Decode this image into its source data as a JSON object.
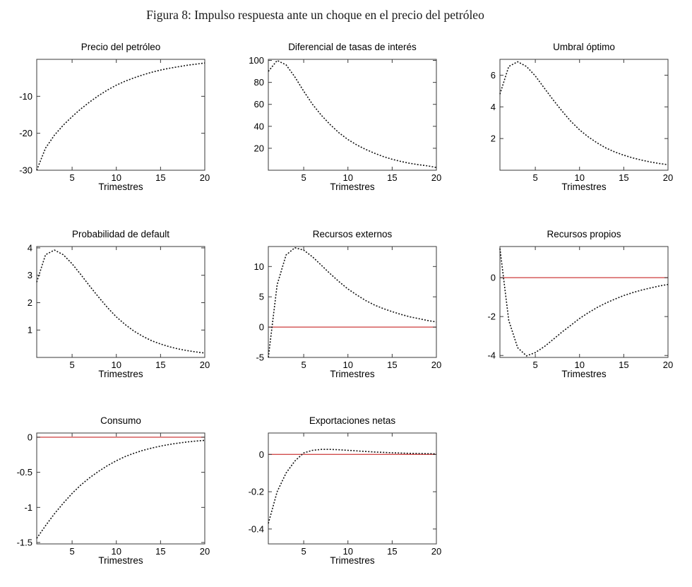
{
  "figure_title": "Figura 8: Impulso respuesta ante un choque en el precio del petróleo",
  "colors": {
    "curve": "#111111",
    "zero_line": "#d24d4d",
    "axes": "#3a3a3a"
  },
  "chart_data": [
    {
      "type": "line",
      "title": "Precio del petróleo",
      "xlabel": "Trimestres",
      "x": [
        1,
        2,
        3,
        4,
        5,
        6,
        7,
        8,
        9,
        10,
        11,
        12,
        13,
        14,
        15,
        16,
        17,
        18,
        19,
        20
      ],
      "values": [
        -30,
        -24,
        -20.5,
        -17.8,
        -15.5,
        -13.4,
        -11.5,
        -9.8,
        -8.3,
        -7.0,
        -5.9,
        -5.0,
        -4.2,
        -3.5,
        -2.9,
        -2.4,
        -2.0,
        -1.6,
        -1.3,
        -1.0
      ],
      "ylim": [
        -30,
        0
      ],
      "yticks": [
        -30,
        -20,
        -10
      ],
      "xticks": [
        5,
        10,
        15,
        20
      ],
      "zero_line": false,
      "line_style": "dotted"
    },
    {
      "type": "line",
      "title": "Diferencial de tasas de interés",
      "xlabel": "Trimestres",
      "x": [
        1,
        2,
        3,
        4,
        5,
        6,
        7,
        8,
        9,
        10,
        11,
        12,
        13,
        14,
        15,
        16,
        17,
        18,
        19,
        20
      ],
      "values": [
        90,
        100,
        96,
        85,
        72,
        60,
        50,
        41.5,
        34,
        28,
        23,
        19,
        15.5,
        12.5,
        10,
        8,
        6.3,
        5,
        4,
        2.5
      ],
      "ylim": [
        0,
        101
      ],
      "yticks": [
        20,
        40,
        60,
        80,
        100
      ],
      "xticks": [
        5,
        10,
        15,
        20
      ],
      "zero_line": false,
      "line_style": "dotted"
    },
    {
      "type": "line",
      "title": "Umbral óptimo",
      "xlabel": "Trimestres",
      "x": [
        1,
        2,
        3,
        4,
        5,
        6,
        7,
        8,
        9,
        10,
        11,
        12,
        13,
        14,
        15,
        16,
        17,
        18,
        19,
        20
      ],
      "values": [
        4.8,
        6.55,
        6.85,
        6.55,
        5.95,
        5.2,
        4.45,
        3.75,
        3.1,
        2.55,
        2.1,
        1.72,
        1.4,
        1.15,
        0.95,
        0.78,
        0.64,
        0.52,
        0.43,
        0.35
      ],
      "ylim": [
        0,
        7
      ],
      "yticks": [
        2,
        4,
        6
      ],
      "xticks": [
        5,
        10,
        15,
        20
      ],
      "zero_line": false,
      "line_style": "dotted"
    },
    {
      "type": "line",
      "title": "Probabilidad de default",
      "xlabel": "Trimestres",
      "x": [
        1,
        2,
        3,
        4,
        5,
        6,
        7,
        8,
        9,
        10,
        11,
        12,
        13,
        14,
        15,
        16,
        17,
        18,
        19,
        20
      ],
      "values": [
        2.75,
        3.75,
        3.92,
        3.75,
        3.42,
        3.02,
        2.6,
        2.2,
        1.82,
        1.48,
        1.2,
        0.96,
        0.77,
        0.61,
        0.49,
        0.39,
        0.31,
        0.25,
        0.2,
        0.16
      ],
      "ylim": [
        0,
        4.05
      ],
      "yticks": [
        1,
        2,
        3,
        4
      ],
      "xticks": [
        5,
        10,
        15,
        20
      ],
      "zero_line": false,
      "line_style": "dotted"
    },
    {
      "type": "line",
      "title": "Recursos externos",
      "xlabel": "Trimestres",
      "x": [
        1,
        2,
        3,
        4,
        5,
        6,
        7,
        8,
        9,
        10,
        11,
        12,
        13,
        14,
        15,
        16,
        17,
        18,
        19,
        20
      ],
      "values": [
        -5,
        7,
        11.9,
        13.1,
        12.7,
        11.6,
        10.2,
        8.8,
        7.5,
        6.3,
        5.3,
        4.4,
        3.65,
        3.05,
        2.55,
        2.1,
        1.7,
        1.4,
        1.1,
        0.85
      ],
      "ylim": [
        -5,
        13.3
      ],
      "yticks": [
        -5,
        0,
        5,
        10
      ],
      "xticks": [
        5,
        10,
        15,
        20
      ],
      "zero_line": true,
      "line_style": "dotted"
    },
    {
      "type": "line",
      "title": "Recursos propios",
      "xlabel": "Trimestres",
      "x": [
        1,
        2,
        3,
        4,
        5,
        6,
        7,
        8,
        9,
        10,
        11,
        12,
        13,
        14,
        15,
        16,
        17,
        18,
        19,
        20
      ],
      "values": [
        1.5,
        -2.2,
        -3.6,
        -4.02,
        -3.85,
        -3.55,
        -3.18,
        -2.8,
        -2.45,
        -2.1,
        -1.8,
        -1.53,
        -1.3,
        -1.1,
        -0.92,
        -0.77,
        -0.64,
        -0.53,
        -0.43,
        -0.35
      ],
      "ylim": [
        -4.1,
        1.6
      ],
      "yticks": [
        -4,
        -2,
        0
      ],
      "xticks": [
        5,
        10,
        15,
        20
      ],
      "zero_line": true,
      "line_style": "dotted"
    },
    {
      "type": "line",
      "title": "Consumo",
      "xlabel": "Trimestres",
      "x": [
        1,
        2,
        3,
        4,
        5,
        6,
        7,
        8,
        9,
        10,
        11,
        12,
        13,
        14,
        15,
        16,
        17,
        18,
        19,
        20
      ],
      "values": [
        -1.44,
        -1.26,
        -1.09,
        -0.94,
        -0.8,
        -0.68,
        -0.575,
        -0.485,
        -0.405,
        -0.335,
        -0.275,
        -0.228,
        -0.188,
        -0.154,
        -0.126,
        -0.103,
        -0.084,
        -0.068,
        -0.055,
        -0.045
      ],
      "ylim": [
        -1.52,
        0.06
      ],
      "yticks": [
        -1.5,
        -1,
        -0.5,
        0
      ],
      "xticks": [
        5,
        10,
        15,
        20
      ],
      "zero_line": true,
      "line_style": "dotted"
    },
    {
      "type": "line",
      "title": "Exportaciones netas",
      "xlabel": "Trimestres",
      "x": [
        1,
        2,
        3,
        4,
        5,
        6,
        7,
        8,
        9,
        10,
        11,
        12,
        13,
        14,
        15,
        16,
        17,
        18,
        19,
        20
      ],
      "values": [
        -0.37,
        -0.2,
        -0.1,
        -0.035,
        0.008,
        0.022,
        0.027,
        0.027,
        0.025,
        0.022,
        0.019,
        0.016,
        0.013,
        0.011,
        0.009,
        0.0075,
        0.006,
        0.005,
        0.004,
        0.0035
      ],
      "ylim": [
        -0.48,
        0.115
      ],
      "yticks": [
        -0.4,
        -0.2,
        0
      ],
      "xticks": [
        5,
        10,
        15,
        20
      ],
      "zero_line": true,
      "line_style": "dotted"
    }
  ]
}
